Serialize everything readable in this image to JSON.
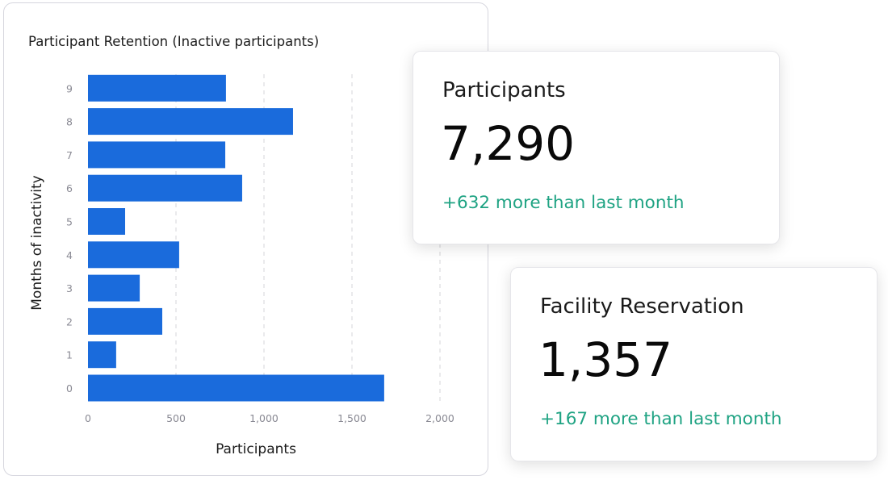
{
  "chart_data": {
    "type": "bar",
    "orientation": "horizontal",
    "title": "Participant Retention (Inactive participants)",
    "xlabel": "Participants",
    "ylabel": "Months of inactivity",
    "categories": [
      "0",
      "1",
      "2",
      "3",
      "4",
      "5",
      "6",
      "7",
      "8",
      "9"
    ],
    "values": [
      1683,
      160,
      422,
      294,
      518,
      211,
      876,
      780,
      1165,
      784
    ],
    "xlim": [
      0,
      2000
    ],
    "xticks": [
      "0",
      "500",
      "1,000",
      "1,500",
      "2,000"
    ],
    "xtick_values": [
      0,
      500,
      1000,
      1500,
      2000
    ],
    "grid": "vertical dashed",
    "bar_color": "#1a6bdc"
  },
  "cards": [
    {
      "title": "Participants",
      "value": "7,290",
      "delta": "+632 more than last month"
    },
    {
      "title": "Facility Reservation",
      "value": "1,357",
      "delta": "+167 more than last month"
    }
  ],
  "colors": {
    "positive": "#1fa383",
    "bar": "#1a6bdc"
  }
}
